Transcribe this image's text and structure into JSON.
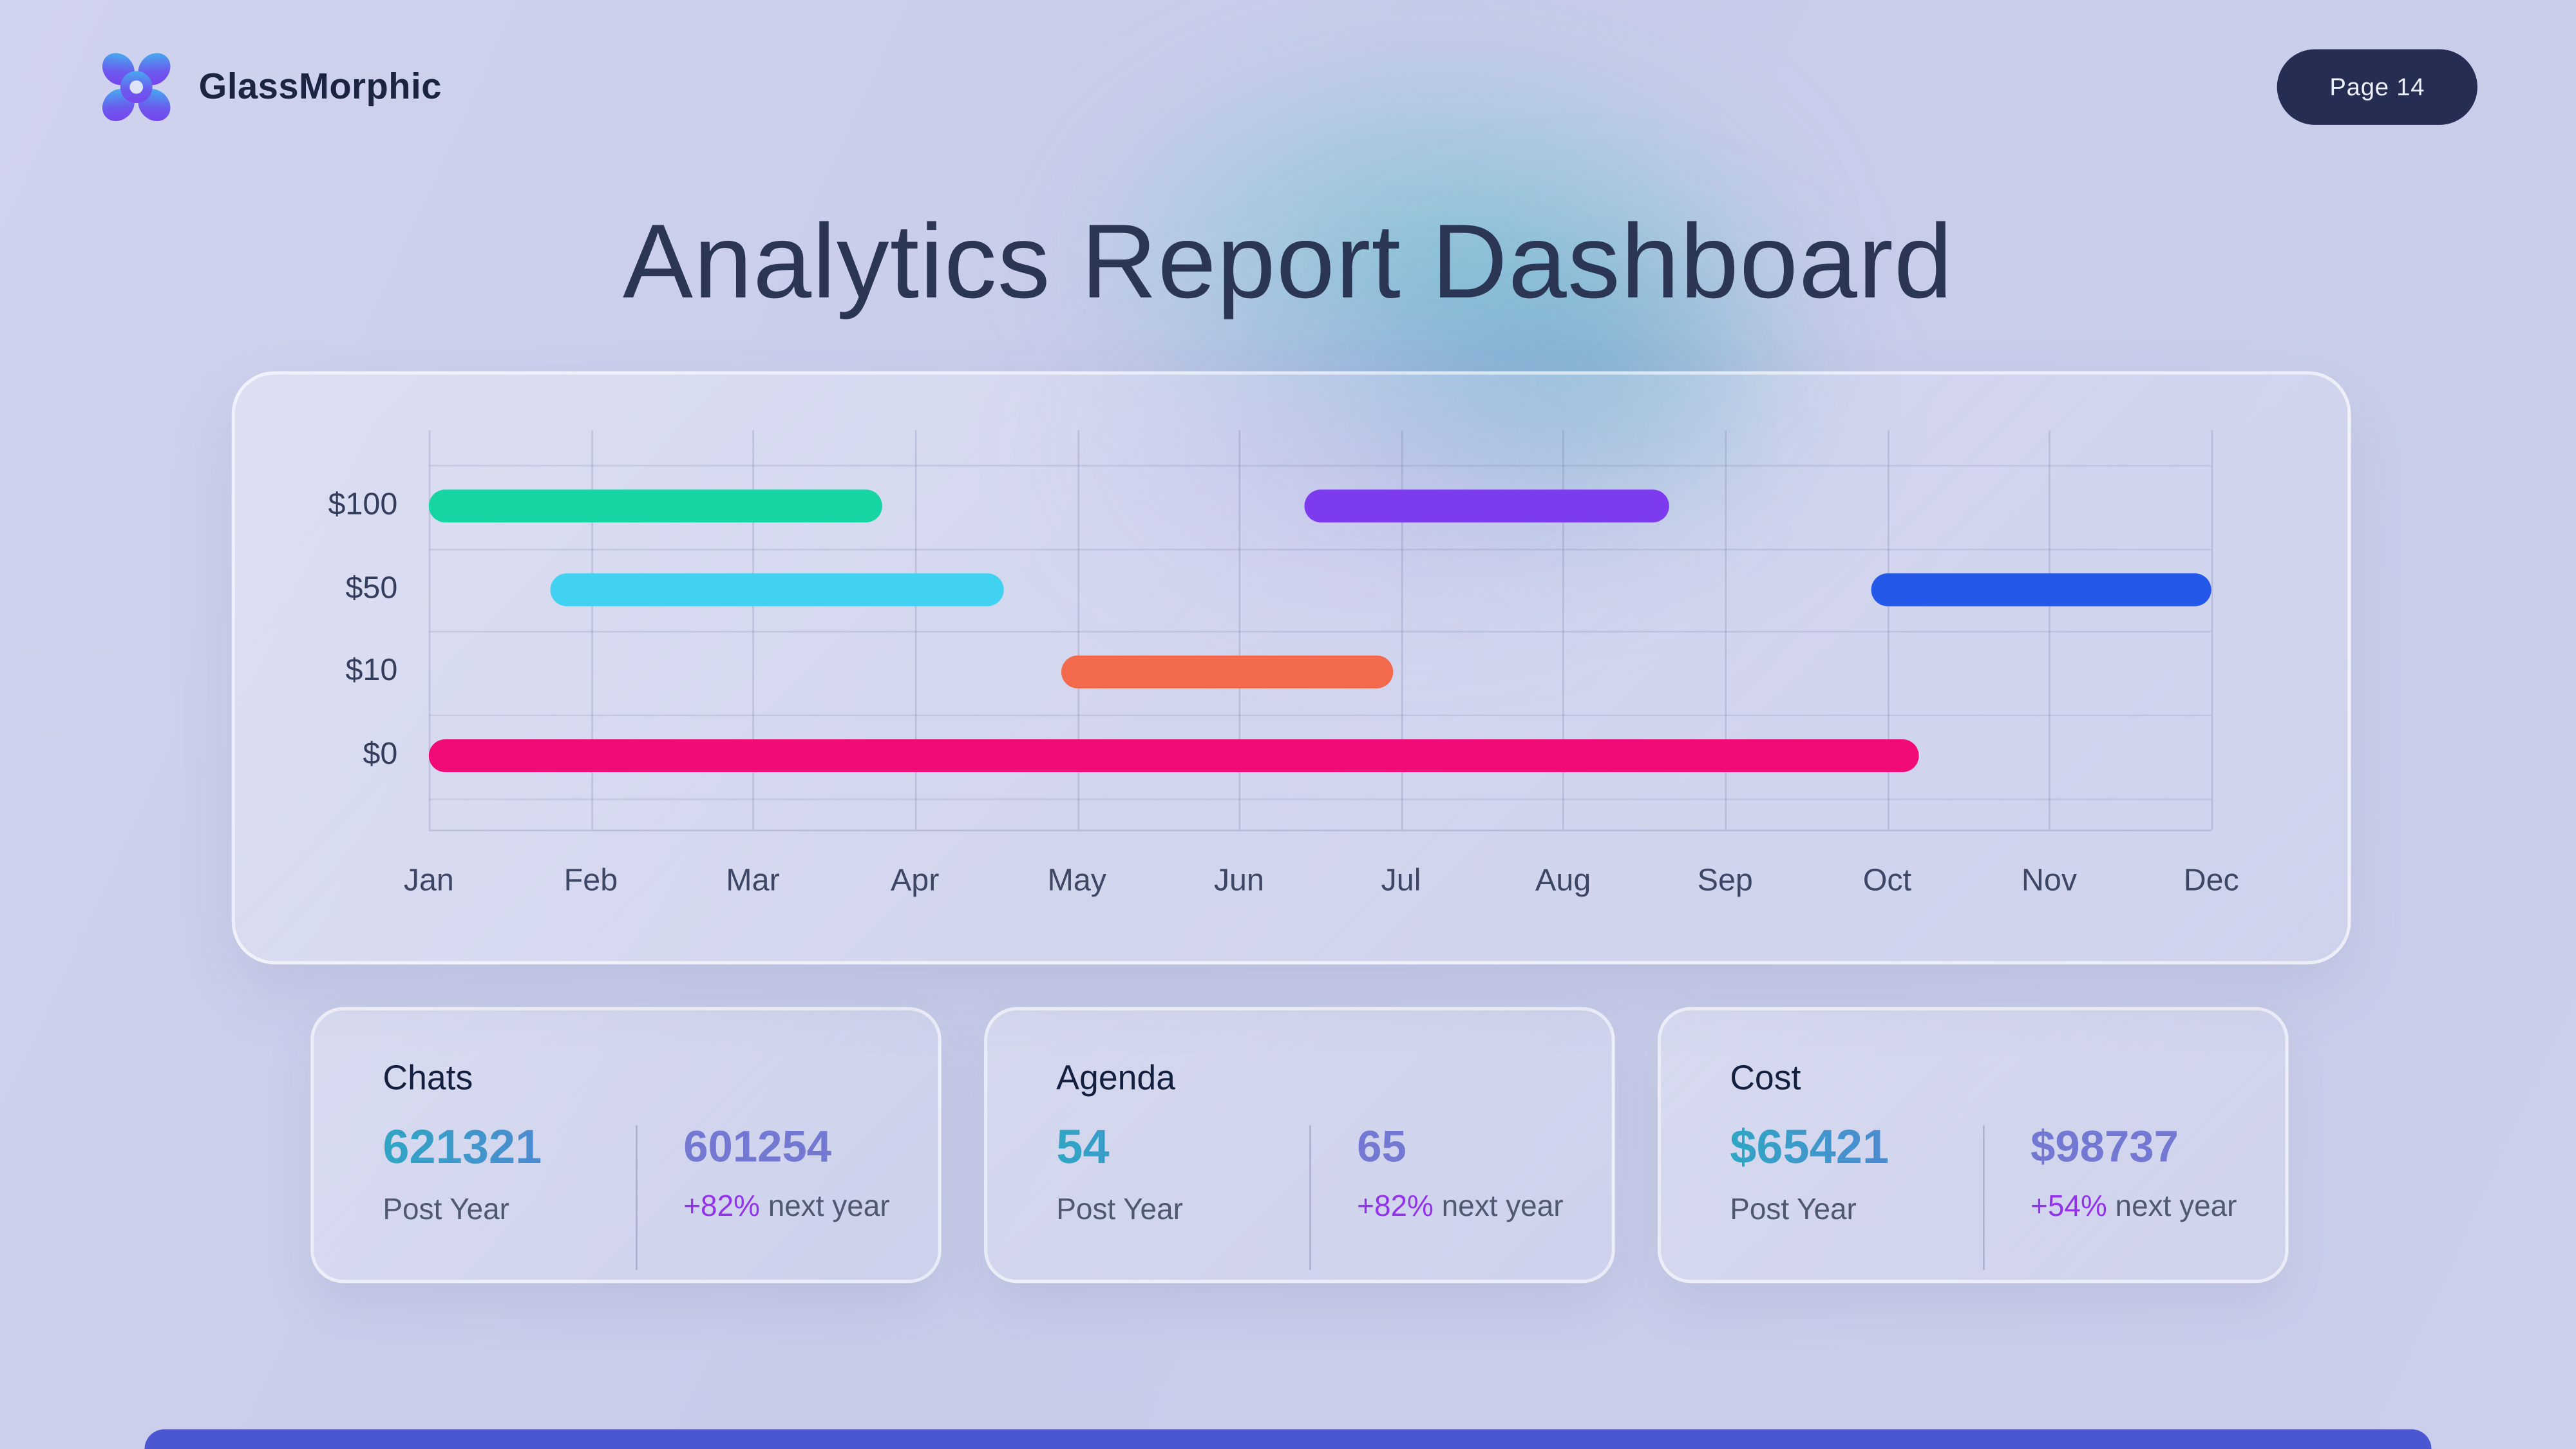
{
  "header": {
    "brand": "GlassMorphic",
    "page_badge": "Page 14"
  },
  "page_title": "Analytics Report Dashboard",
  "chart_data": {
    "type": "bar",
    "subtype": "horizontal-range-gantt",
    "x_labels": [
      "Jan",
      "Feb",
      "Mar",
      "Apr",
      "May",
      "Jun",
      "Jul",
      "Aug",
      "Sep",
      "Oct",
      "Nov",
      "Dec"
    ],
    "x_domain": [
      0,
      11
    ],
    "rows": [
      "$100",
      "$50",
      "$10",
      "$0"
    ],
    "grid": true,
    "legend": "none",
    "bars": [
      {
        "row": 0,
        "row_label": "$100",
        "start": 0,
        "end": 2.8,
        "color": "#16d5a2"
      },
      {
        "row": 0,
        "row_label": "$100",
        "start": 5.4,
        "end": 7.65,
        "color": "#7c3bed"
      },
      {
        "row": 1,
        "row_label": "$50",
        "start": 0.75,
        "end": 3.55,
        "color": "#41d2f2"
      },
      {
        "row": 1,
        "row_label": "$50",
        "start": 8.9,
        "end": 11,
        "color": "#2458e8"
      },
      {
        "row": 2,
        "row_label": "$10",
        "start": 3.9,
        "end": 5.95,
        "color": "#f26a4b"
      },
      {
        "row": 3,
        "row_label": "$0",
        "start": 0,
        "end": 9.2,
        "color": "#f00b77"
      }
    ]
  },
  "stats": [
    {
      "title": "Chats",
      "primary_value": "621321",
      "primary_label": "Post Year",
      "secondary_value": "601254",
      "delta": "+82%",
      "delta_label": " next year"
    },
    {
      "title": "Agenda",
      "primary_value": "54",
      "primary_label": "Post Year",
      "secondary_value": "65",
      "delta": "+82%",
      "delta_label": " next year"
    },
    {
      "title": "Cost",
      "primary_value": "$65421",
      "primary_label": "Post Year",
      "secondary_value": "$98737",
      "delta": "+54%",
      "delta_label": " next year"
    }
  ],
  "colors": {
    "accent_bottom_bar": "#4b57d2",
    "badge_bg": "#252e52",
    "title_text": "#2b3554",
    "delta_text": "#9233ea",
    "primary_value_gradient": [
      "#2fa6c4",
      "#5b7fd6"
    ],
    "secondary_value": "#7379d2"
  }
}
